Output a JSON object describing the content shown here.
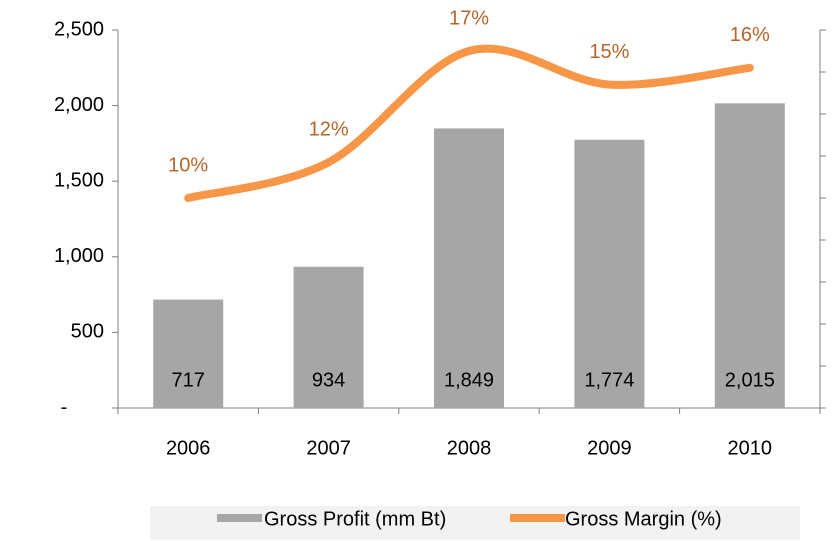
{
  "chart_data": {
    "type": "bar-line",
    "categories": [
      "2006",
      "2007",
      "2008",
      "2009",
      "2010"
    ],
    "series": [
      {
        "name": "Gross Profit (mm Bt)",
        "type": "bar",
        "color": "#a6a6a6",
        "values": [
          717,
          934,
          1849,
          1774,
          2015
        ],
        "value_labels": [
          "717",
          "934",
          "1,849",
          "1,774",
          "2,015"
        ]
      },
      {
        "name": "Gross Margin (%)",
        "type": "line",
        "axis": "y2",
        "color": "#f79646",
        "values": [
          10,
          11.7,
          17,
          15.4,
          16.2
        ],
        "value_labels": [
          "10%",
          "12%",
          "17%",
          "15%",
          "16%"
        ]
      }
    ],
    "ylim": [
      0,
      2500
    ],
    "yticks": [
      {
        "value": 0,
        "label": "-"
      },
      500,
      {
        "value": 1000,
        "label": "1,000"
      },
      {
        "value": 1500,
        "label": "1,500"
      },
      {
        "value": 2000,
        "label": "2,000"
      },
      {
        "value": 2500,
        "label": "2,500"
      }
    ],
    "y2lim": [
      0,
      18
    ],
    "y2ticks": [
      0,
      2,
      4,
      6,
      8,
      10,
      12,
      14,
      16,
      18
    ],
    "legend": "bottom"
  }
}
